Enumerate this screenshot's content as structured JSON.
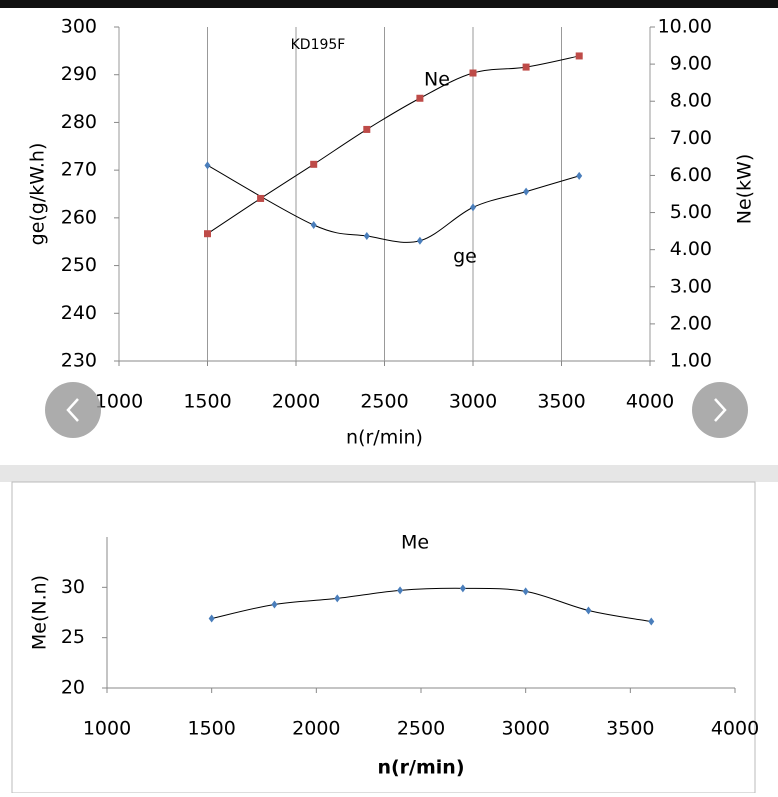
{
  "chart_data": [
    {
      "type": "scatter",
      "title": "KD195F",
      "x_label": "n(r/min)",
      "y_label": "ge(g/kW.h)",
      "y2_label": "Ne(kW)",
      "annotations": [
        "Ne",
        "ge"
      ],
      "xlim": [
        1000,
        4000
      ],
      "xticks": [
        1000,
        1500,
        2000,
        2500,
        3000,
        3500,
        4000
      ],
      "ylim": [
        230,
        300
      ],
      "yticks": [
        230,
        240,
        250,
        260,
        270,
        280,
        290,
        300
      ],
      "y2lim": [
        1,
        10
      ],
      "y2ticks": [
        {
          "value": 1,
          "label": "1.00"
        },
        {
          "value": 2,
          "label": "2.00"
        },
        {
          "value": 3,
          "label": "3.00"
        },
        {
          "value": 4,
          "label": "4.00"
        },
        {
          "value": 5,
          "label": "5.00"
        },
        {
          "value": 6,
          "label": "6.00"
        },
        {
          "value": 7,
          "label": "7.00"
        },
        {
          "value": 8,
          "label": "8.00"
        },
        {
          "value": 9,
          "label": "9.00"
        },
        {
          "value": 10,
          "label": "10.00"
        }
      ],
      "xgrid": true,
      "series": [
        {
          "name": "ge",
          "color": "#4a7ebb",
          "marker": "diamond",
          "x": [
            1500,
            2100,
            2400,
            2700,
            3000,
            3300,
            3600
          ],
          "values": [
            271,
            258.5,
            256.2,
            255.2,
            262.2,
            265.5,
            268.8
          ]
        },
        {
          "name": "Ne",
          "color": "#be4b48",
          "marker": "square",
          "axis": "y2",
          "x": [
            1500,
            1800,
            2100,
            2400,
            2700,
            3000,
            3300,
            3600
          ],
          "values": [
            4.43,
            5.38,
            6.3,
            7.24,
            8.08,
            8.76,
            8.92,
            9.22
          ]
        }
      ]
    },
    {
      "type": "scatter",
      "title": "Me",
      "x_label": "n(r/min)",
      "y_label": "Me(N.n)",
      "xlim": [
        1000,
        4000
      ],
      "xticks": [
        1000,
        1500,
        2000,
        2500,
        3000,
        3500,
        4000
      ],
      "ylim": [
        20,
        35
      ],
      "yticks": [
        20,
        25,
        30
      ],
      "xgrid": false,
      "series": [
        {
          "name": "Me",
          "color": "#4a7ebb",
          "marker": "diamond",
          "x": [
            1500,
            1800,
            2100,
            2400,
            2700,
            3000,
            3300,
            3600
          ],
          "values": [
            26.9,
            28.3,
            28.9,
            29.7,
            29.9,
            29.6,
            27.7,
            26.6
          ]
        }
      ]
    }
  ]
}
